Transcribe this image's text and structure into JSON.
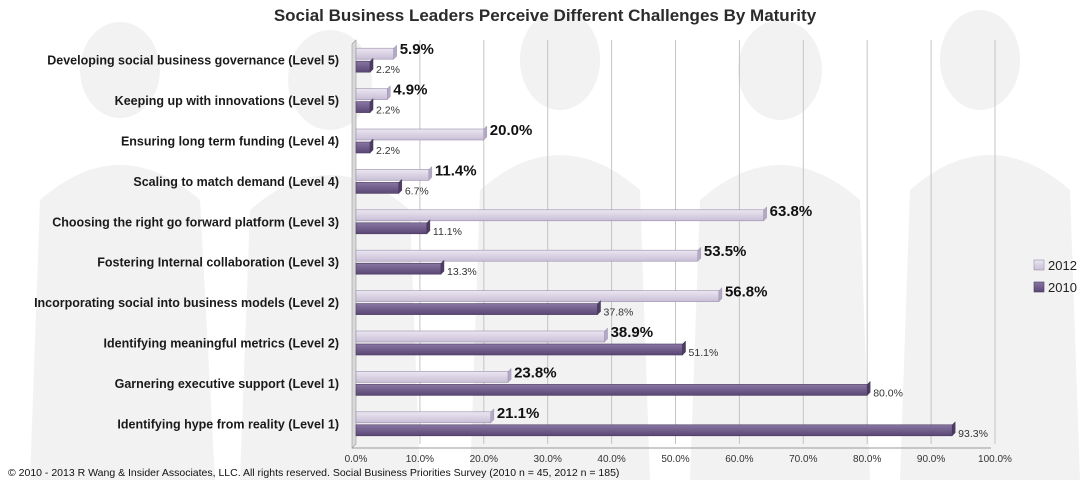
{
  "chart_data": {
    "type": "bar",
    "orientation": "horizontal",
    "title": "Social Business Leaders Perceive Different Challenges By Maturity",
    "categories": [
      "Developing social business governance (Level 5)",
      "Keeping up with innovations (Level 5)",
      "Ensuring long term funding (Level 4)",
      "Scaling to match demand (Level 4)",
      "Choosing the right go forward platform (Level 3)",
      "Fostering Internal collaboration (Level 3)",
      "Incorporating social into business models (Level 2)",
      "Identifying meaningful metrics (Level 2)",
      "Garnering executive support (Level 1)",
      "Identifying hype from reality (Level 1)"
    ],
    "series": [
      {
        "name": "2012",
        "color": "#d8d0e2",
        "values": [
          5.9,
          4.9,
          20.0,
          11.4,
          63.8,
          53.5,
          56.8,
          38.9,
          23.8,
          21.1
        ],
        "labels": [
          "5.9%",
          "4.9%",
          "20.0%",
          "11.4%",
          "63.8%",
          "53.5%",
          "56.8%",
          "38.9%",
          "23.8%",
          "21.1%"
        ]
      },
      {
        "name": "2010",
        "color": "#6f5a8a",
        "values": [
          2.2,
          2.2,
          2.2,
          6.7,
          11.1,
          13.3,
          37.8,
          51.1,
          80.0,
          93.3
        ],
        "labels": [
          "2.2%",
          "2.2%",
          "2.2%",
          "6.7%",
          "11.1%",
          "13.3%",
          "37.8%",
          "51.1%",
          "80.0%",
          "93.3%"
        ]
      }
    ],
    "xlim": [
      0,
      100
    ],
    "xticks": [
      "0.0%",
      "10.0%",
      "20.0%",
      "30.0%",
      "40.0%",
      "50.0%",
      "60.0%",
      "70.0%",
      "80.0%",
      "90.0%",
      "100.0%"
    ],
    "grid": true,
    "legend": "right"
  },
  "footer": "© 2010 - 2013 R Wang & Insider Associates, LLC.  All rights reserved.  Social Business Priorities Survey (2010 n = 45, 2012 n = 185)"
}
